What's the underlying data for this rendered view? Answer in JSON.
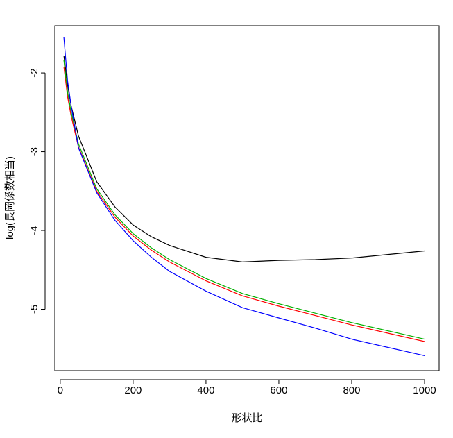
{
  "chart_data": {
    "type": "line",
    "title": "",
    "xlabel": "形状比",
    "ylabel": "log(長岡係数相当)",
    "xlim": [
      -15,
      1040
    ],
    "ylim": [
      -5.78,
      -1.4
    ],
    "x_ticks": [
      0,
      200,
      400,
      600,
      800,
      1000
    ],
    "y_ticks": [
      -2,
      -3,
      -4,
      -5
    ],
    "x_tick_labels": [
      "0",
      "200",
      "400",
      "600",
      "800",
      "1000"
    ],
    "y_tick_labels": [
      "-2",
      "-3",
      "-4",
      "-5"
    ],
    "grid": false,
    "legend": "none",
    "series": [
      {
        "color": "#000000",
        "x": [
          10,
          20,
          30,
          50,
          100,
          150,
          200,
          250,
          300,
          400,
          500,
          600,
          700,
          800,
          1000
        ],
        "y": [
          -1.78,
          -2.15,
          -2.42,
          -2.8,
          -3.38,
          -3.7,
          -3.93,
          -4.08,
          -4.19,
          -4.34,
          -4.4,
          -4.38,
          -4.37,
          -4.35,
          -4.26
        ]
      },
      {
        "color": "#ff0000",
        "x": [
          10,
          20,
          30,
          50,
          100,
          150,
          200,
          250,
          300,
          400,
          500,
          600,
          700,
          800,
          1000
        ],
        "y": [
          -1.92,
          -2.3,
          -2.55,
          -2.94,
          -3.5,
          -3.83,
          -4.07,
          -4.25,
          -4.4,
          -4.64,
          -4.83,
          -4.96,
          -5.08,
          -5.2,
          -5.41
        ]
      },
      {
        "color": "#00b000",
        "x": [
          10,
          20,
          30,
          50,
          100,
          150,
          200,
          250,
          300,
          400,
          500,
          600,
          700,
          800,
          1000
        ],
        "y": [
          -1.84,
          -2.24,
          -2.5,
          -2.9,
          -3.47,
          -3.8,
          -4.04,
          -4.22,
          -4.37,
          -4.61,
          -4.8,
          -4.93,
          -5.05,
          -5.17,
          -5.38
        ]
      },
      {
        "color": "#0000ff",
        "x": [
          10,
          20,
          30,
          50,
          100,
          150,
          200,
          250,
          300,
          400,
          500,
          600,
          700,
          800,
          1000
        ],
        "y": [
          -1.55,
          -2.1,
          -2.42,
          -2.95,
          -3.52,
          -3.87,
          -4.13,
          -4.34,
          -4.52,
          -4.77,
          -4.98,
          -5.11,
          -5.24,
          -5.38,
          -5.59
        ]
      }
    ]
  }
}
